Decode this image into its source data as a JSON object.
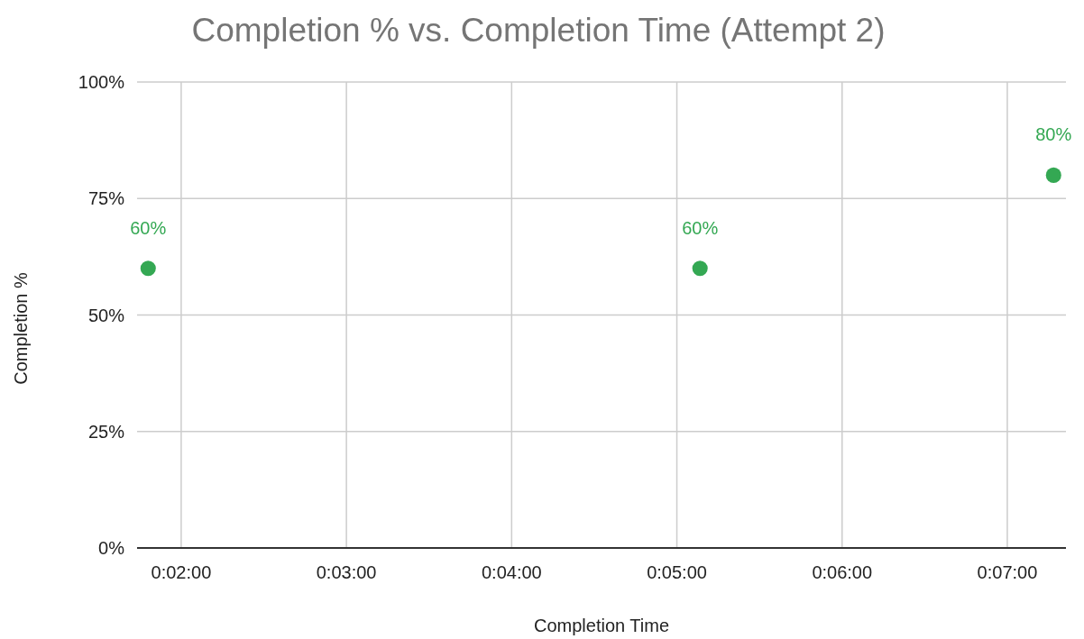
{
  "chart_data": {
    "type": "scatter",
    "title": "Completion % vs. Completion Time (Attempt 2)",
    "xlabel": "Completion Time",
    "ylabel": "Completion %",
    "x": [
      1.8,
      5.14,
      7.28
    ],
    "series": [
      {
        "color": "#34a853",
        "values": [
          60,
          60,
          80
        ],
        "value_labels": [
          "60%",
          "60%",
          "80%"
        ]
      }
    ],
    "xlim": [
      1.733,
      7.355
    ],
    "xticks": [
      {
        "value": 2,
        "label": "0:02:00"
      },
      {
        "value": 3,
        "label": "0:03:00"
      },
      {
        "value": 4,
        "label": "0:04:00"
      },
      {
        "value": 5,
        "label": "0:05:00"
      },
      {
        "value": 6,
        "label": "0:06:00"
      },
      {
        "value": 7,
        "label": "0:07:00"
      }
    ],
    "ylim": [
      0,
      100
    ],
    "yticks": [
      {
        "value": 0,
        "label": "0%"
      },
      {
        "value": 25,
        "label": "25%"
      },
      {
        "value": 50,
        "label": "50%"
      },
      {
        "value": 75,
        "label": "75%"
      },
      {
        "value": 100,
        "label": "100%"
      }
    ],
    "grid": true,
    "marker": "circle"
  }
}
